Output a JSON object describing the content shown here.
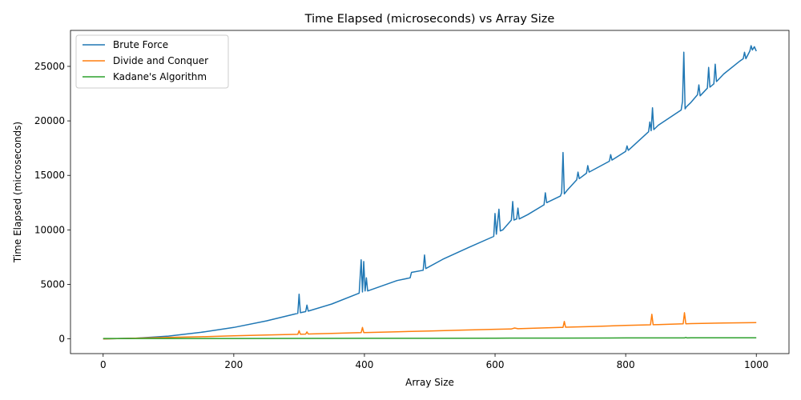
{
  "chart_data": {
    "type": "line",
    "title": "Time Elapsed (microseconds) vs Array Size",
    "xlabel": "Array Size",
    "ylabel": "Time Elapsed (microseconds)",
    "xlim": [
      -50,
      1050
    ],
    "ylim": [
      -1350,
      28300
    ],
    "xticks": [
      0,
      200,
      400,
      600,
      800,
      1000
    ],
    "yticks": [
      0,
      5000,
      10000,
      15000,
      20000,
      25000
    ],
    "grid": false,
    "legend_position": "top-left",
    "series": [
      {
        "name": "Brute Force",
        "color": "#1f77b4",
        "x": [
          0,
          50,
          100,
          150,
          200,
          250,
          298,
          300,
          302,
          310,
          312,
          314,
          350,
          392,
          395,
          397,
          399,
          401,
          403,
          405,
          450,
          470,
          472,
          490,
          492,
          494,
          520,
          560,
          598,
          600,
          602,
          606,
          608,
          612,
          625,
          627,
          629,
          633,
          635,
          637,
          650,
          675,
          677,
          679,
          700,
          702,
          704,
          706,
          710,
          725,
          727,
          729,
          740,
          742,
          744,
          775,
          777,
          779,
          800,
          802,
          804,
          835,
          837,
          839,
          841,
          843,
          850,
          885,
          887,
          889,
          891,
          893,
          900,
          910,
          912,
          914,
          925,
          927,
          929,
          935,
          937,
          939,
          950,
          975,
          980,
          982,
          984,
          990,
          992,
          994,
          997,
          1000
        ],
        "y": [
          0,
          70,
          260,
          600,
          1050,
          1650,
          2350,
          4100,
          2400,
          2500,
          3100,
          2550,
          3200,
          4200,
          7250,
          4300,
          7100,
          4400,
          5600,
          4400,
          5350,
          5600,
          6100,
          6300,
          7700,
          6450,
          7300,
          8400,
          9400,
          11500,
          9600,
          11900,
          9900,
          10000,
          10900,
          12600,
          10900,
          11000,
          12000,
          11000,
          11400,
          12300,
          13400,
          12500,
          13100,
          13400,
          17100,
          13300,
          13600,
          14600,
          15300,
          14700,
          15200,
          15900,
          15300,
          16300,
          16900,
          16400,
          17200,
          17700,
          17300,
          19000,
          19900,
          19100,
          21200,
          19200,
          19600,
          21000,
          21800,
          26300,
          21100,
          21300,
          21700,
          22400,
          23300,
          22300,
          23000,
          24900,
          23100,
          23400,
          25200,
          23600,
          24300,
          25500,
          25700,
          26300,
          25700,
          26400,
          26900,
          26500,
          26800,
          26400
        ]
      },
      {
        "name": "Divide and Conquer",
        "color": "#ff7f0e",
        "x": [
          0,
          50,
          100,
          150,
          200,
          250,
          298,
          300,
          302,
          310,
          312,
          314,
          350,
          395,
          397,
          399,
          450,
          500,
          550,
          600,
          625,
          630,
          635,
          700,
          704,
          706,
          708,
          750,
          800,
          838,
          840,
          842,
          850,
          888,
          890,
          892,
          900,
          950,
          1000
        ],
        "y": [
          0,
          65,
          130,
          200,
          280,
          350,
          420,
          750,
          430,
          440,
          640,
          450,
          500,
          570,
          1050,
          580,
          650,
          730,
          810,
          880,
          910,
          1000,
          930,
          1050,
          1060,
          1600,
          1070,
          1140,
          1230,
          1290,
          2250,
          1300,
          1310,
          1380,
          2400,
          1390,
          1400,
          1450,
          1500
        ]
      },
      {
        "name": "Kadane's Algorithm",
        "color": "#2ca02c",
        "x": [
          0,
          100,
          200,
          300,
          400,
          500,
          600,
          700,
          800,
          890,
          892,
          894,
          900,
          1000
        ],
        "y": [
          40,
          40,
          40,
          45,
          50,
          55,
          65,
          75,
          85,
          90,
          130,
          92,
          95,
          105
        ]
      }
    ]
  }
}
